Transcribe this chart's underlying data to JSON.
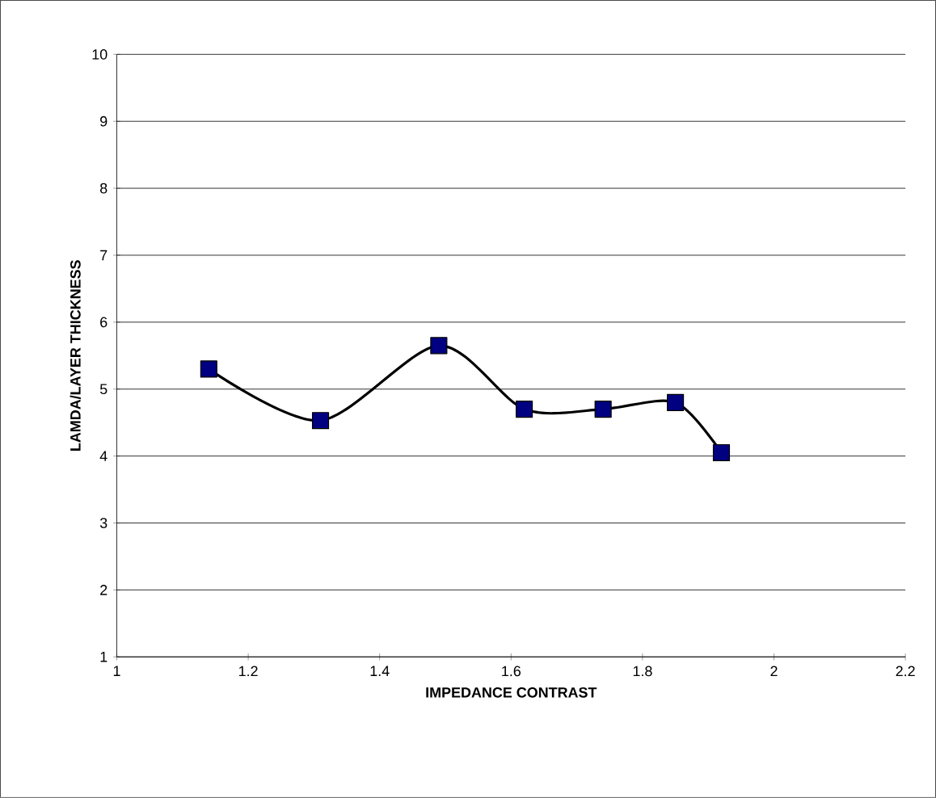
{
  "chart_data": {
    "type": "line",
    "xlabel": "IMPEDANCE CONTRAST",
    "ylabel": "LAMDA/LAYER THICKNESS",
    "x": [
      1.14,
      1.31,
      1.49,
      1.62,
      1.74,
      1.85,
      1.92
    ],
    "series": [
      {
        "color": "#000080",
        "values": [
          5.3,
          4.53,
          5.65,
          4.7,
          4.7,
          4.8,
          4.05
        ]
      }
    ],
    "xlim": [
      1,
      2.2
    ],
    "ylim": [
      1,
      10
    ],
    "xticks": [
      1,
      1.2,
      1.4,
      1.6,
      1.8,
      2,
      2.2
    ],
    "yticks": [
      1,
      2,
      3,
      4,
      5,
      6,
      7,
      8,
      9,
      10
    ],
    "grid": "y",
    "marker": "square",
    "line_style": "solid"
  }
}
